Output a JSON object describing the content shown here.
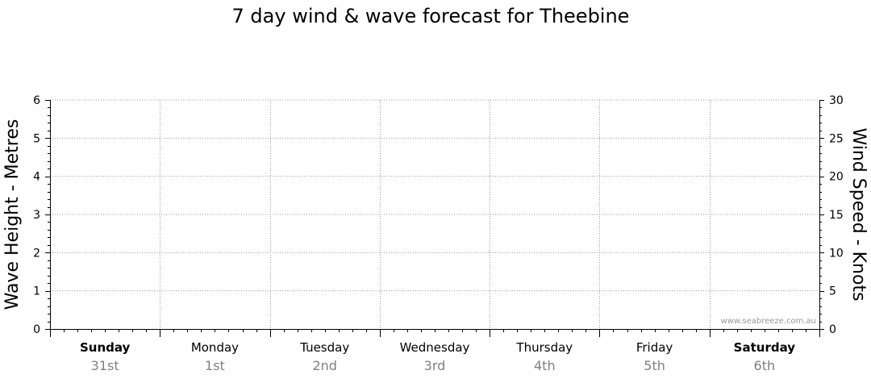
{
  "chart_data": {
    "type": "line",
    "title": "7 day wind & wave forecast for Theebine",
    "y_left_label": "Wave Height - Metres",
    "y_right_label": "Wind Speed - Knots",
    "ylim_left": [
      0,
      6
    ],
    "ylim_right": [
      0,
      30
    ],
    "y_left_ticks": [
      0,
      1,
      2,
      3,
      4,
      5,
      6
    ],
    "y_right_ticks": [
      0,
      5,
      10,
      15,
      20,
      25,
      30
    ],
    "grid": true,
    "days": [
      {
        "name": "Sunday",
        "date": "31st",
        "bold": true
      },
      {
        "name": "Monday",
        "date": "1st",
        "bold": false
      },
      {
        "name": "Tuesday",
        "date": "2nd",
        "bold": false
      },
      {
        "name": "Wednesday",
        "date": "3rd",
        "bold": false
      },
      {
        "name": "Thursday",
        "date": "4th",
        "bold": false
      },
      {
        "name": "Friday",
        "date": "5th",
        "bold": false
      },
      {
        "name": "Saturday",
        "date": "6th",
        "bold": true
      }
    ],
    "series": []
  },
  "credit": "www.seabreeze.com.au"
}
